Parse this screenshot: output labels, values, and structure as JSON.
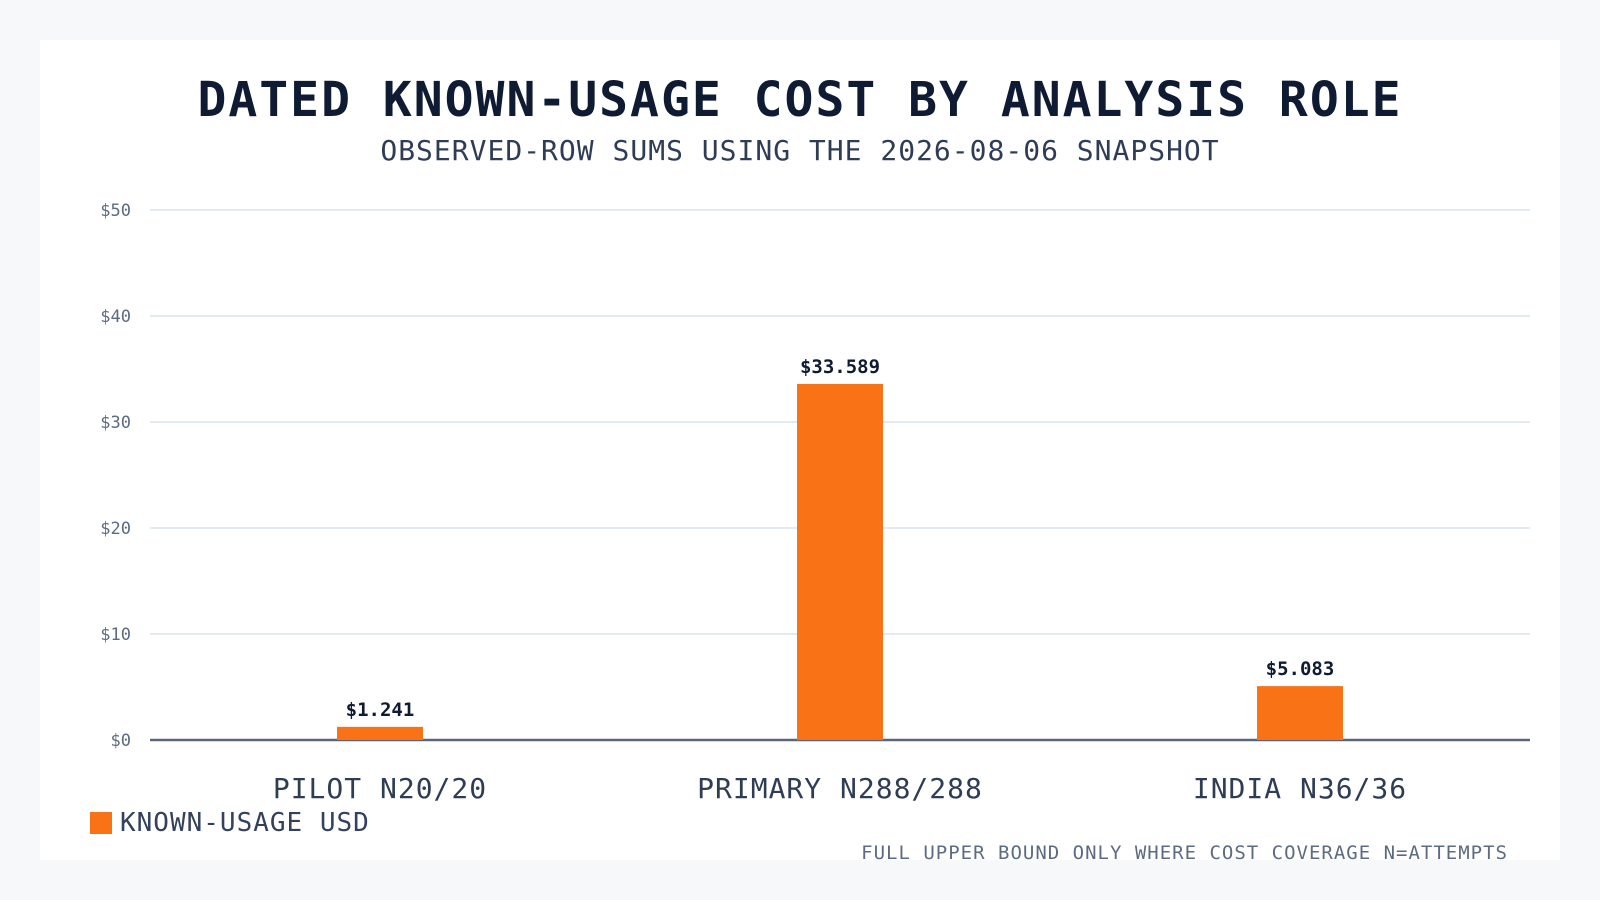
{
  "colors": {
    "bar": "#f97316",
    "grid": "#dbe3ee",
    "axis": "#5a6678",
    "tick_text": "#5a6b82",
    "category_text": "#2e3d55",
    "value_text": "#0f1b33"
  },
  "chart_data": {
    "type": "bar",
    "title": "DATED KNOWN-USAGE COST BY ANALYSIS ROLE",
    "subtitle": "OBSERVED-ROW SUMS USING THE 2026-08-06 SNAPSHOT",
    "categories": [
      "PILOT N20/20",
      "PRIMARY N288/288",
      "INDIA N36/36"
    ],
    "series": [
      {
        "name": "KNOWN-USAGE USD",
        "values": [
          1.241,
          33.589,
          5.083
        ],
        "labels": [
          "$1.241",
          "$33.589",
          "$5.083"
        ]
      }
    ],
    "ylim": [
      0,
      50
    ],
    "yticks": [
      0,
      10,
      20,
      30,
      40,
      50
    ],
    "ytick_labels": [
      "$0",
      "$10",
      "$20",
      "$30",
      "$40",
      "$50"
    ],
    "grid": true,
    "legend_position": "bottom-left",
    "footnote": "FULL UPPER BOUND ONLY WHERE COST COVERAGE N=ATTEMPTS"
  }
}
